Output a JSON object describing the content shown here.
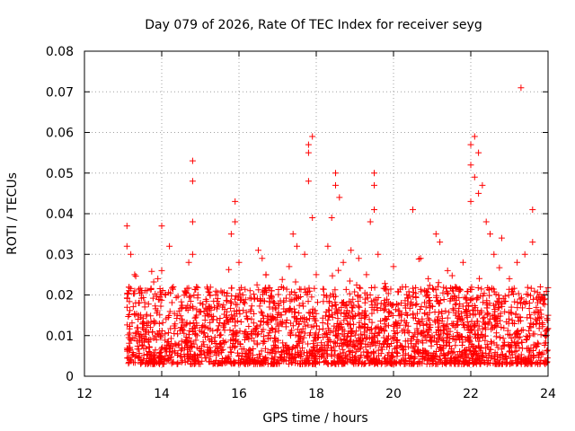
{
  "chart_data": {
    "type": "scatter",
    "title": "Day 079 of 2026, Rate Of TEC Index for receiver seyg",
    "xlabel": "GPS time / hours",
    "ylabel": "ROTI / TECUs",
    "xlim": [
      12,
      24
    ],
    "ylim": [
      0,
      0.08
    ],
    "grid": true,
    "marker": "+",
    "color": "#ff0000",
    "x_ticks": [
      {
        "value": 12,
        "label": "12"
      },
      {
        "value": 14,
        "label": "14"
      },
      {
        "value": 16,
        "label": "16"
      },
      {
        "value": 18,
        "label": "18"
      },
      {
        "value": 20,
        "label": "20"
      },
      {
        "value": 22,
        "label": "22"
      },
      {
        "value": 24,
        "label": "24"
      }
    ],
    "y_ticks": [
      {
        "value": 0,
        "label": "0"
      },
      {
        "value": 0.01,
        "label": "0.01"
      },
      {
        "value": 0.02,
        "label": "0.02"
      },
      {
        "value": 0.03,
        "label": "0.03"
      },
      {
        "value": 0.04,
        "label": "0.04"
      },
      {
        "value": 0.05,
        "label": "0.05"
      },
      {
        "value": 0.06,
        "label": "0.06"
      },
      {
        "value": 0.07,
        "label": "0.07"
      },
      {
        "value": 0.08,
        "label": "0.08"
      }
    ],
    "series": [
      {
        "name": "ROTI",
        "points": [
          [
            13.1,
            0.037
          ],
          [
            13.1,
            0.032
          ],
          [
            13.2,
            0.03
          ],
          [
            13.3,
            0.025
          ],
          [
            13.3,
            0.021
          ],
          [
            13.4,
            0.018
          ],
          [
            13.5,
            0.013
          ],
          [
            13.6,
            0.011
          ],
          [
            13.7,
            0.009
          ],
          [
            13.9,
            0.024
          ],
          [
            14.0,
            0.037
          ],
          [
            14.0,
            0.026
          ],
          [
            14.1,
            0.02
          ],
          [
            14.2,
            0.032
          ],
          [
            14.3,
            0.022
          ],
          [
            14.4,
            0.015
          ],
          [
            14.5,
            0.012
          ],
          [
            14.6,
            0.021
          ],
          [
            14.7,
            0.028
          ],
          [
            14.8,
            0.053
          ],
          [
            14.8,
            0.048
          ],
          [
            14.8,
            0.038
          ],
          [
            14.8,
            0.03
          ],
          [
            14.9,
            0.022
          ],
          [
            15.0,
            0.018
          ],
          [
            15.2,
            0.015
          ],
          [
            15.4,
            0.02
          ],
          [
            15.6,
            0.012
          ],
          [
            15.8,
            0.035
          ],
          [
            15.9,
            0.043
          ],
          [
            15.9,
            0.038
          ],
          [
            16.0,
            0.028
          ],
          [
            16.1,
            0.02
          ],
          [
            16.3,
            0.016
          ],
          [
            16.5,
            0.031
          ],
          [
            16.6,
            0.029
          ],
          [
            16.7,
            0.025
          ],
          [
            16.9,
            0.018
          ],
          [
            17.1,
            0.022
          ],
          [
            17.3,
            0.027
          ],
          [
            17.4,
            0.035
          ],
          [
            17.5,
            0.032
          ],
          [
            17.7,
            0.03
          ],
          [
            17.8,
            0.057
          ],
          [
            17.8,
            0.055
          ],
          [
            17.8,
            0.048
          ],
          [
            17.9,
            0.059
          ],
          [
            17.9,
            0.039
          ],
          [
            18.0,
            0.025
          ],
          [
            18.2,
            0.02
          ],
          [
            18.3,
            0.032
          ],
          [
            18.4,
            0.039
          ],
          [
            18.5,
            0.05
          ],
          [
            18.5,
            0.047
          ],
          [
            18.6,
            0.044
          ],
          [
            18.7,
            0.028
          ],
          [
            18.9,
            0.031
          ],
          [
            19.1,
            0.029
          ],
          [
            19.3,
            0.025
          ],
          [
            19.4,
            0.038
          ],
          [
            19.5,
            0.05
          ],
          [
            19.5,
            0.047
          ],
          [
            19.5,
            0.041
          ],
          [
            19.6,
            0.03
          ],
          [
            19.8,
            0.022
          ],
          [
            20.0,
            0.027
          ],
          [
            20.2,
            0.018
          ],
          [
            20.5,
            0.041
          ],
          [
            20.7,
            0.029
          ],
          [
            20.9,
            0.024
          ],
          [
            21.1,
            0.035
          ],
          [
            21.2,
            0.033
          ],
          [
            21.4,
            0.026
          ],
          [
            21.6,
            0.022
          ],
          [
            21.8,
            0.028
          ],
          [
            22.0,
            0.057
          ],
          [
            22.0,
            0.052
          ],
          [
            22.0,
            0.043
          ],
          [
            22.1,
            0.059
          ],
          [
            22.1,
            0.049
          ],
          [
            22.2,
            0.055
          ],
          [
            22.2,
            0.045
          ],
          [
            22.3,
            0.047
          ],
          [
            22.4,
            0.038
          ],
          [
            22.5,
            0.035
          ],
          [
            22.6,
            0.03
          ],
          [
            22.8,
            0.034
          ],
          [
            23.0,
            0.024
          ],
          [
            23.2,
            0.028
          ],
          [
            23.3,
            0.071
          ],
          [
            23.4,
            0.03
          ],
          [
            23.6,
            0.041
          ],
          [
            23.6,
            0.033
          ],
          [
            23.8,
            0.022
          ],
          [
            23.9,
            0.02
          ],
          [
            24.0,
            0.015
          ]
        ]
      }
    ]
  }
}
